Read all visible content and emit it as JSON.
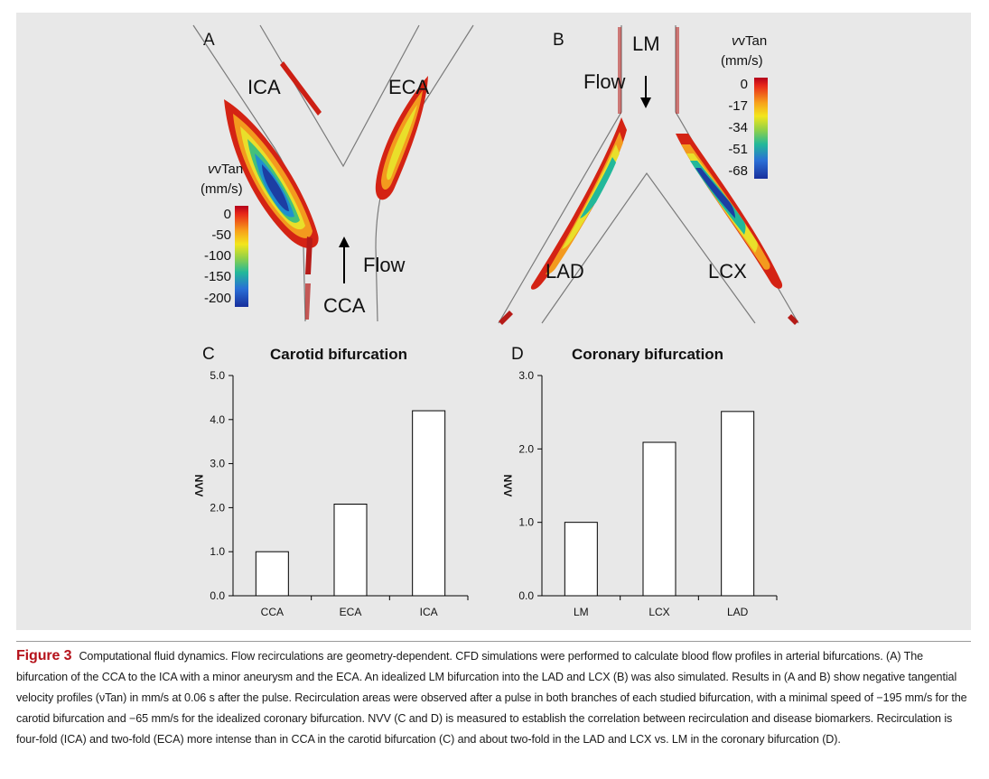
{
  "figure": {
    "panel_a": {
      "letter": "A",
      "labels": {
        "ica": "ICA",
        "eca": "ECA",
        "cca": "CCA",
        "flow": "Flow"
      },
      "colorbar": {
        "title_line1": "vTan",
        "title_line2": "(mm/s)",
        "ticks": [
          "0",
          "-50",
          "-100",
          "-150",
          "-200"
        ]
      }
    },
    "panel_b": {
      "letter": "B",
      "labels": {
        "lm": "LM",
        "lad": "LAD",
        "lcx": "LCX",
        "flow": "Flow"
      },
      "colorbar": {
        "title_line1": "vTan",
        "title_line2": "(mm/s)",
        "ticks": [
          "0",
          "-17",
          "-34",
          "-51",
          "-68"
        ]
      }
    },
    "colorbar_colors": [
      "#b3001b",
      "#e8281a",
      "#f7a21b",
      "#f3e61c",
      "#8ed04a",
      "#22b89a",
      "#2a6fd6",
      "#182f9c"
    ]
  },
  "chart_data": [
    {
      "panel": "C",
      "type": "bar",
      "title": "Carotid bifurcation",
      "categories": [
        "CCA",
        "ECA",
        "ICA"
      ],
      "values": [
        1.0,
        2.08,
        4.2
      ],
      "ylabel": "NVV",
      "xlabel": "",
      "ylim": [
        0,
        5
      ],
      "yticks": [
        "0.0",
        "1.0",
        "2.0",
        "3.0",
        "4.0",
        "5.0"
      ]
    },
    {
      "panel": "D",
      "type": "bar",
      "title": "Coronary bifurcation",
      "categories": [
        "LM",
        "LCX",
        "LAD"
      ],
      "values": [
        1.0,
        2.09,
        2.51
      ],
      "ylabel": "NVV",
      "xlabel": "",
      "ylim": [
        0,
        3
      ],
      "yticks": [
        "0.0",
        "1.0",
        "2.0",
        "3.0"
      ]
    }
  ],
  "caption": {
    "label": "Figure 3",
    "text": "Computational fluid dynamics. Flow recirculations are geometry-dependent. CFD simulations were performed to calculate blood flow profiles in arterial bifurcations. (A) The bifurcation of the CCA to the ICA with a minor aneurysm and the ECA. An idealized LM bifurcation into the LAD and LCX (B) was also simulated. Results in (A and B) show negative tangential velocity profiles (νTan) in mm/s at 0.06 s after the pulse. Recirculation areas were observed after a pulse in both branches of each studied bifurcation, with a minimal speed of −195 mm/s for the carotid bifurcation and −65 mm/s for the idealized coronary bifurcation. NVV (C and D) is measured to establish the correlation between recirculation and disease biomarkers. Recirculation is four-fold (ICA) and two-fold (ECA) more intense than in CCA in the carotid bifurcation (C) and about two-fold in the LAD and LCX vs. LM in the coronary bifurcation (D)."
  }
}
